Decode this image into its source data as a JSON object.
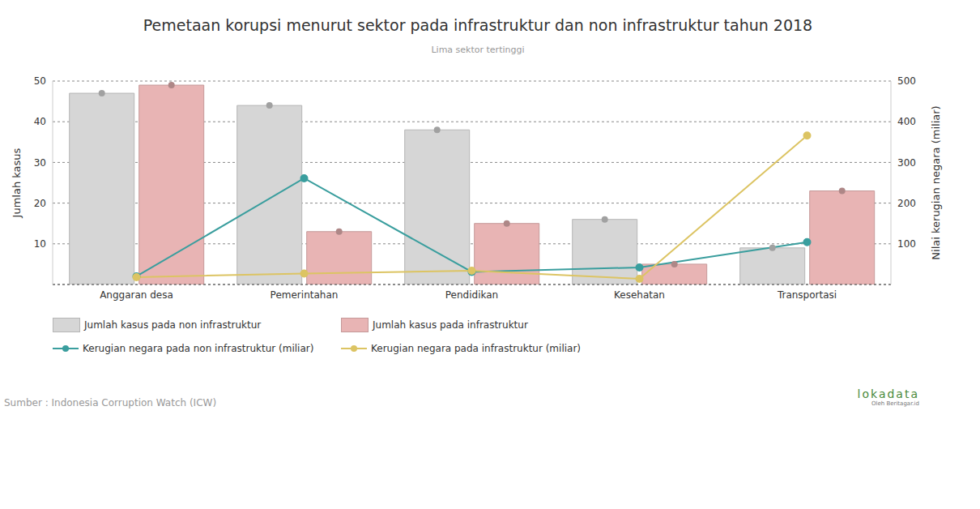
{
  "chart_data": {
    "type": "bar",
    "title": "Pemetaan korupsi menurut sektor pada infrastruktur dan non infrastruktur tahun 2018",
    "subtitle": "Lima sektor tertinggi",
    "categories": [
      "Anggaran desa",
      "Pemerintahan",
      "Pendidikan",
      "Kesehatan",
      "Transportasi"
    ],
    "y_label": "Jumlah kasus",
    "y2_label": "Nilai kerugian negara (miliar)",
    "ylim": [
      0,
      50
    ],
    "yticks": [
      10,
      20,
      30,
      40,
      50
    ],
    "y2lim": [
      0,
      500
    ],
    "y2ticks": [
      100,
      200,
      300,
      400,
      500
    ],
    "grid": true,
    "legend": "bottom",
    "series": [
      {
        "name": "Jumlah kasus pada non infrastruktur",
        "type": "bar",
        "color": "#d6d6d6",
        "marker": "circle",
        "values": [
          47,
          44,
          38,
          16,
          9
        ]
      },
      {
        "name": "Jumlah kasus pada infrastruktur",
        "type": "bar",
        "color": "#e8b4b4",
        "marker": "circle",
        "values": [
          49,
          13,
          15,
          5,
          23
        ]
      },
      {
        "name": "Kerugian negara pada non infrastruktur (miliar)",
        "type": "line",
        "axis": "y2",
        "color": "#3a9e9e",
        "marker": "circle",
        "values": [
          20,
          261,
          31,
          42,
          104
        ]
      },
      {
        "name": "Kerugian negara pada infrastruktur (miliar)",
        "type": "line",
        "axis": "y2",
        "color": "#dcc463",
        "marker": "circle",
        "values": [
          18,
          27,
          34,
          14,
          366
        ]
      }
    ],
    "source": "Sumber : Indonesia Corruption Watch (ICW)",
    "credit": "lokadata",
    "credit_sub": "Oleh Beritagar.id"
  }
}
